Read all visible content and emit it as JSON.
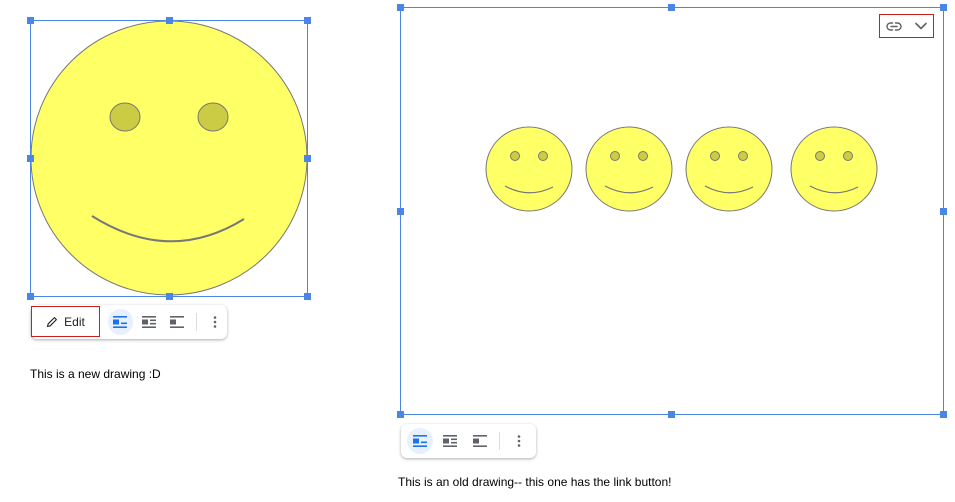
{
  "new_drawing": {
    "edit_label": "Edit",
    "caption": "This is a new drawing :D"
  },
  "old_drawing": {
    "caption": "This is an old drawing-- this one has the link button!"
  },
  "toolbar": {
    "icons": [
      "pencil-icon",
      "wrap-inline-icon",
      "wrap-text-icon",
      "break-text-icon",
      "more-vert-icon"
    ]
  },
  "colors": {
    "selection": "#4a86e8",
    "highlight": "#c5221f",
    "face_fill": "#ffff66",
    "eye_fill": "#cccc44",
    "active_bg": "#e8f0fe"
  }
}
